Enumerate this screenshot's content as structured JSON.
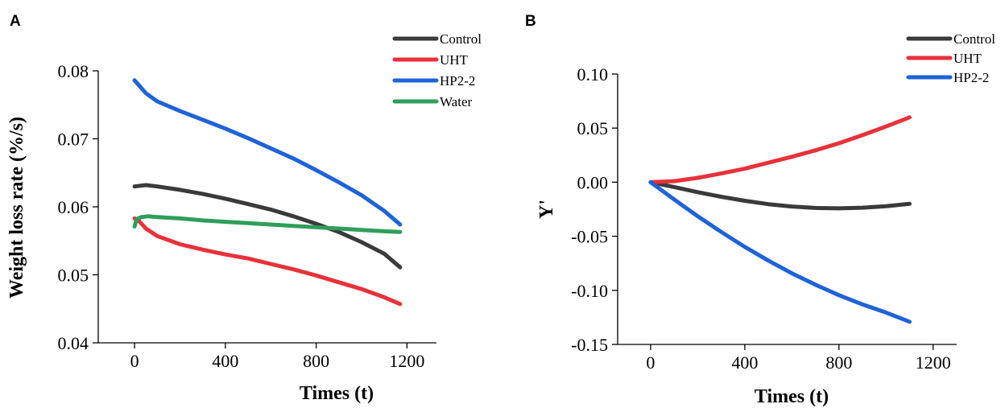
{
  "chart_data": [
    {
      "panel": "A",
      "type": "line",
      "title": "",
      "xlabel": "Times (t)",
      "ylabel": "Weight loss rate (%/s)",
      "xlim": [
        -160,
        1330
      ],
      "ylim": [
        0.04,
        0.08
      ],
      "xticks": [
        0,
        400,
        800,
        1200
      ],
      "yticks": [
        0.04,
        0.05,
        0.06,
        0.07,
        0.08
      ],
      "xtick_labels": [
        "0",
        "400",
        "800",
        "1200"
      ],
      "ytick_labels": [
        "0.04",
        "0.05",
        "0.06",
        "0.07",
        "0.08"
      ],
      "grid": false,
      "legend_position": "top-right",
      "series": [
        {
          "name": "Control",
          "color": "#3a3a3a",
          "x": [
            0,
            50,
            100,
            200,
            300,
            400,
            500,
            600,
            700,
            800,
            900,
            1000,
            1100,
            1170
          ],
          "y": [
            0.063,
            0.0632,
            0.063,
            0.0625,
            0.0619,
            0.0612,
            0.0604,
            0.0596,
            0.0586,
            0.0575,
            0.0563,
            0.0548,
            0.0531,
            0.0511
          ]
        },
        {
          "name": "UHT",
          "color": "#e8313a",
          "x": [
            0,
            20,
            50,
            100,
            200,
            300,
            400,
            500,
            600,
            700,
            800,
            900,
            1000,
            1100,
            1170
          ],
          "y": [
            0.0583,
            0.0579,
            0.0568,
            0.0557,
            0.0545,
            0.0537,
            0.053,
            0.0524,
            0.0516,
            0.0508,
            0.0499,
            0.0489,
            0.0479,
            0.0467,
            0.0457
          ]
        },
        {
          "name": "HP2-2",
          "color": "#1e63d8",
          "x": [
            0,
            50,
            100,
            200,
            300,
            400,
            500,
            600,
            700,
            800,
            900,
            1000,
            1100,
            1170
          ],
          "y": [
            0.0786,
            0.0767,
            0.0755,
            0.0741,
            0.0728,
            0.0715,
            0.0701,
            0.0686,
            0.0671,
            0.0654,
            0.0636,
            0.0617,
            0.0594,
            0.0574
          ]
        },
        {
          "name": "Water",
          "color": "#2e9e5b",
          "x": [
            0,
            10,
            30,
            60,
            100,
            200,
            300,
            400,
            500,
            600,
            700,
            800,
            900,
            1000,
            1100,
            1170
          ],
          "y": [
            0.0571,
            0.0582,
            0.0585,
            0.0586,
            0.0585,
            0.0583,
            0.058,
            0.0578,
            0.0576,
            0.0574,
            0.0572,
            0.057,
            0.0568,
            0.0566,
            0.0564,
            0.0563
          ]
        }
      ]
    },
    {
      "panel": "B",
      "type": "line",
      "title": "",
      "xlabel": "Times (t)",
      "ylabel": "Y'",
      "xlim": [
        -140,
        1300
      ],
      "ylim": [
        -0.15,
        0.1
      ],
      "xticks": [
        0,
        400,
        800,
        1200
      ],
      "yticks": [
        -0.15,
        -0.1,
        -0.05,
        0.0,
        0.05,
        0.1
      ],
      "xtick_labels": [
        "0",
        "400",
        "800",
        "1200"
      ],
      "ytick_labels": [
        "-0.15",
        "-0.10",
        "-0.05",
        "0.00",
        "0.05",
        "0.10"
      ],
      "grid": false,
      "legend_position": "top-right",
      "series": [
        {
          "name": "Control",
          "color": "#3a3a3a",
          "x": [
            0,
            100,
            200,
            300,
            400,
            500,
            600,
            700,
            800,
            900,
            1000,
            1100
          ],
          "y": [
            0.0,
            -0.0045,
            -0.0092,
            -0.0135,
            -0.0172,
            -0.0203,
            -0.0225,
            -0.0238,
            -0.0242,
            -0.0236,
            -0.0222,
            -0.02
          ]
        },
        {
          "name": "UHT",
          "color": "#e8313a",
          "x": [
            0,
            100,
            200,
            300,
            400,
            500,
            600,
            700,
            800,
            900,
            1000,
            1100
          ],
          "y": [
            0.0,
            0.001,
            0.004,
            0.008,
            0.0125,
            0.018,
            0.0235,
            0.0295,
            0.036,
            0.0435,
            0.0515,
            0.06
          ]
        },
        {
          "name": "HP2-2",
          "color": "#1e63d8",
          "x": [
            0,
            100,
            200,
            300,
            400,
            500,
            600,
            700,
            800,
            900,
            1000,
            1100
          ],
          "y": [
            0.0,
            -0.016,
            -0.0315,
            -0.046,
            -0.0598,
            -0.0725,
            -0.0842,
            -0.0948,
            -0.1045,
            -0.113,
            -0.1205,
            -0.129
          ]
        }
      ]
    }
  ]
}
